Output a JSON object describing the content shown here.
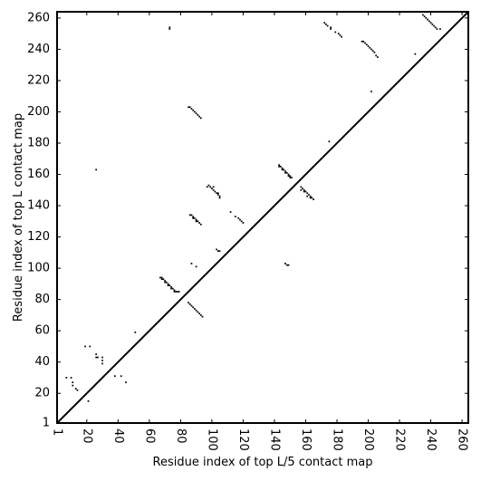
{
  "chart_data": {
    "type": "scatter",
    "x_label": "Residue index of top L/5 contact map",
    "y_label": "Residue index of top L contact map",
    "xlim": [
      1,
      264
    ],
    "ylim": [
      1,
      264
    ],
    "xticks": [
      1,
      20,
      40,
      60,
      80,
      100,
      120,
      140,
      160,
      180,
      200,
      220,
      240,
      260
    ],
    "yticks": [
      1,
      20,
      40,
      60,
      80,
      100,
      120,
      140,
      160,
      180,
      200,
      220,
      240,
      260
    ],
    "diagonal": true,
    "color": "#000000",
    "x": [
      73,
      73,
      172,
      173,
      174,
      176,
      176,
      179,
      181,
      182,
      183,
      196,
      197,
      198,
      199,
      200,
      201,
      202,
      203,
      204,
      205,
      206,
      235,
      236,
      237,
      238,
      239,
      240,
      241,
      242,
      243,
      244,
      246,
      230,
      202,
      26,
      175,
      85,
      86,
      87,
      88,
      89,
      90,
      91,
      92,
      93,
      97,
      98,
      99,
      100,
      101,
      102,
      103,
      104,
      105,
      105,
      101,
      104,
      112,
      115,
      117,
      118,
      119,
      120,
      143,
      144,
      145,
      146,
      147,
      148,
      149,
      150,
      151,
      143,
      145,
      147,
      149,
      150,
      157,
      158,
      159,
      160,
      161,
      162,
      163,
      164,
      165,
      157,
      159,
      161,
      163,
      86,
      87,
      88,
      89,
      90,
      91,
      92,
      93,
      88,
      90,
      103,
      104,
      105,
      87,
      90,
      147,
      148,
      149,
      67,
      68,
      69,
      70,
      71,
      72,
      73,
      74,
      75,
      76,
      77,
      78,
      79,
      68,
      70,
      72,
      74,
      76,
      85,
      86,
      87,
      88,
      89,
      90,
      91,
      92,
      93,
      94,
      51,
      19,
      22,
      26,
      26,
      27,
      30,
      30,
      30,
      7,
      10,
      11,
      11,
      13,
      14,
      21,
      38,
      42,
      45
    ],
    "values": [
      253,
      254,
      257,
      256,
      255,
      254,
      253,
      251,
      250,
      249,
      248,
      245,
      245,
      244,
      243,
      242,
      241,
      240,
      239,
      238,
      236,
      235,
      262,
      261,
      260,
      259,
      258,
      257,
      256,
      255,
      254,
      253,
      253,
      237,
      213,
      163,
      181,
      203,
      203,
      202,
      201,
      200,
      199,
      198,
      197,
      196,
      152,
      153,
      152,
      151,
      150,
      149,
      148,
      147,
      146,
      145,
      152,
      148,
      136,
      133,
      132,
      131,
      130,
      129,
      166,
      165,
      164,
      163,
      162,
      161,
      160,
      159,
      158,
      165,
      163,
      161,
      159,
      158,
      152,
      151,
      150,
      149,
      148,
      147,
      146,
      145,
      144,
      150,
      149,
      146,
      145,
      134,
      134,
      133,
      132,
      131,
      130,
      129,
      128,
      132,
      130,
      112,
      111,
      111,
      103,
      101,
      103,
      102,
      102,
      94,
      93,
      93,
      92,
      91,
      90,
      89,
      88,
      87,
      86,
      85,
      85,
      85,
      94,
      91,
      89,
      87,
      85,
      78,
      77,
      76,
      75,
      74,
      73,
      72,
      71,
      70,
      69,
      59,
      50,
      50,
      45,
      43,
      43,
      43,
      41,
      39,
      30,
      30,
      27,
      25,
      23,
      22,
      15,
      31,
      31,
      27
    ]
  }
}
